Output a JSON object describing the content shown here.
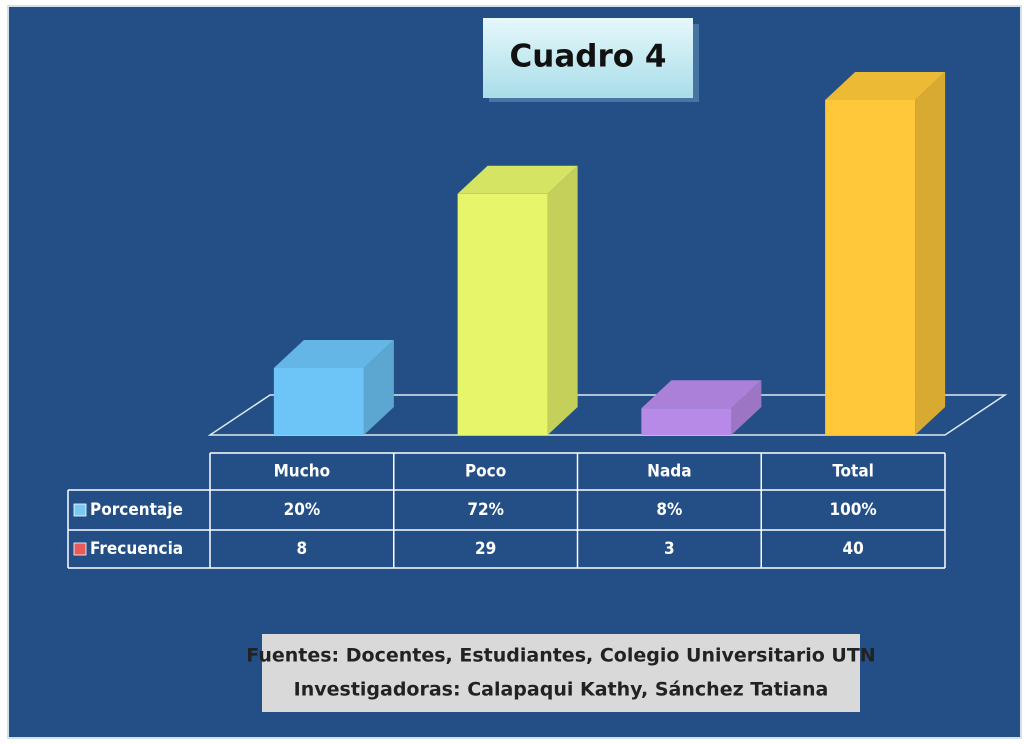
{
  "chart_data": {
    "type": "bar3d",
    "title": "Cuadro 4",
    "categories": [
      "Mucho",
      "Poco",
      "Nada",
      "Total"
    ],
    "bar_colors": [
      "#6cc4f7",
      "#e6f56a",
      "#b78ae8",
      "#ffc83a"
    ],
    "series": [
      {
        "name": "Porcentaje",
        "color": "#7cc8f5",
        "values": [
          20,
          72,
          8,
          100
        ],
        "value_labels": [
          "20%",
          "72%",
          "8%",
          "100%"
        ]
      },
      {
        "name": "Frecuencia",
        "color": "#e85a5a",
        "values": [
          8,
          29,
          3,
          40
        ]
      }
    ],
    "ylim": [
      0,
      100
    ],
    "notes": [
      "Fuentes: Docentes, Estudiantes, Colegio Universitario UTN",
      "Investigadoras: Calapaqui Kathy, Sánchez Tatiana"
    ]
  }
}
